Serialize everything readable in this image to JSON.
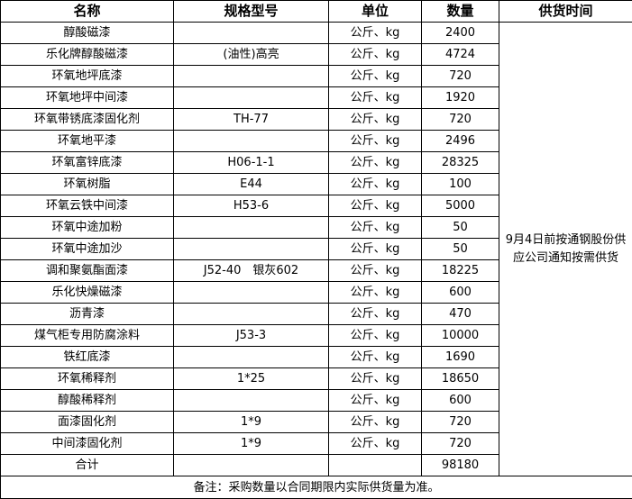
{
  "headers": [
    "名称",
    "规格型号",
    "单位",
    "数量",
    "供货时间"
  ],
  "rows": [
    {
      "name": "醇酸磁漆",
      "spec": "",
      "unit": "公斤、kg",
      "qty": "2400"
    },
    {
      "name": "乐化牌醇酸磁漆",
      "spec": "(油性)高亮",
      "unit": "公斤、kg",
      "qty": "4724"
    },
    {
      "name": "环氧地坪底漆",
      "spec": "",
      "unit": "公斤、kg",
      "qty": "720"
    },
    {
      "name": "环氧地坪中间漆",
      "spec": "",
      "unit": "公斤、kg",
      "qty": "1920"
    },
    {
      "name": "环氧带锈底漆固化剂",
      "spec": "TH-77",
      "unit": "公斤、kg",
      "qty": "720"
    },
    {
      "name": "环氧地平漆",
      "spec": "",
      "unit": "公斤、kg",
      "qty": "2496"
    },
    {
      "name": "环氧富锌底漆",
      "spec": "H06-1-1",
      "unit": "公斤、kg",
      "qty": "28325"
    },
    {
      "name": "环氧树脂",
      "spec": "E44",
      "unit": "公斤、kg",
      "qty": "100"
    },
    {
      "name": "环氧云铁中间漆",
      "spec": "H53-6",
      "unit": "公斤、kg",
      "qty": "5000"
    },
    {
      "name": "环氧中途加粉",
      "spec": "",
      "unit": "公斤、kg",
      "qty": "50"
    },
    {
      "name": "环氧中途加沙",
      "spec": "",
      "unit": "公斤、kg",
      "qty": "50"
    },
    {
      "name": "调和聚氨酯面漆",
      "spec": "J52-40　银灰602",
      "unit": "公斤、kg",
      "qty": "18225"
    },
    {
      "name": "乐化快燥磁漆",
      "spec": "",
      "unit": "公斤、kg",
      "qty": "600"
    },
    {
      "name": "沥青漆",
      "spec": "",
      "unit": "公斤、kg",
      "qty": "470"
    },
    {
      "name": "煤气柜专用防腐涂料",
      "spec": "J53-3",
      "unit": "公斤、kg",
      "qty": "10000"
    },
    {
      "name": "铁红底漆",
      "spec": "",
      "unit": "公斤、kg",
      "qty": "1690"
    },
    {
      "name": "环氧稀释剂",
      "spec": "1*25",
      "unit": "公斤、kg",
      "qty": "18650"
    },
    {
      "name": "醇酸稀释剂",
      "spec": "",
      "unit": "公斤、kg",
      "qty": "600"
    },
    {
      "name": "面漆固化剂",
      "spec": "1*9",
      "unit": "公斤、kg",
      "qty": "720"
    },
    {
      "name": "中间漆固化剂",
      "spec": "1*9",
      "unit": "公斤、kg",
      "qty": "720"
    }
  ],
  "total": {
    "label": "合计",
    "qty": "98180"
  },
  "delivery": "9月4日前按通钢股份供应公司通知按需供货",
  "note": "备注：采购数量以合同期限内实际供货量为准。"
}
